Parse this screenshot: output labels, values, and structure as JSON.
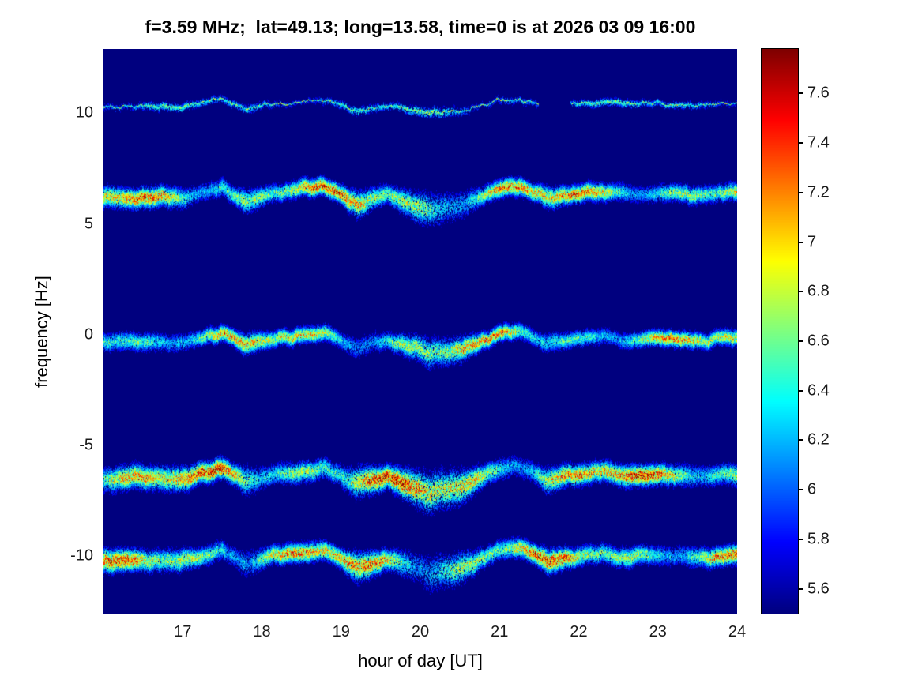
{
  "chart_data": {
    "type": "heatmap",
    "subtype": "doppler-spectrogram",
    "title": "f=3.59 MHz;  lat=49.13; long=13.58, time=0 is at 2026 03 09 16:00",
    "xlabel": "hour of day [UT]",
    "ylabel": "frequency [Hz]",
    "xlim": [
      16,
      24
    ],
    "ylim": [
      -12.6,
      12.9
    ],
    "xticks": [
      17,
      18,
      19,
      20,
      21,
      22,
      23,
      24
    ],
    "yticks": [
      10,
      5,
      0,
      -5,
      -10
    ],
    "colormap": "jet",
    "background_color": "#00007f",
    "colorbar": {
      "min": 5.5,
      "max": 7.78,
      "ticks": [
        {
          "v": 5.6,
          "label": "5.6"
        },
        {
          "v": 5.8,
          "label": "5.8"
        },
        {
          "v": 6.0,
          "label": "6"
        },
        {
          "v": 6.2,
          "label": "6.2"
        },
        {
          "v": 6.4,
          "label": "6.4"
        },
        {
          "v": 6.6,
          "label": "6.6"
        },
        {
          "v": 6.8,
          "label": "6.8"
        },
        {
          "v": 7.0,
          "label": "7"
        },
        {
          "v": 7.2,
          "label": "7.2"
        },
        {
          "v": 7.4,
          "label": "7.4"
        },
        {
          "v": 7.6,
          "label": "7.6"
        }
      ]
    },
    "bands": [
      {
        "center_hz": 10.4,
        "width_hz": 0.1,
        "strength": 0.5,
        "style": "thin",
        "wiggle_scale": 0.55,
        "gaps": [
          [
            21.5,
            21.9
          ]
        ]
      },
      {
        "center_hz": 6.35,
        "width_hz": 0.22,
        "strength": 0.95,
        "style": "speckle",
        "wiggle_scale": 1.0,
        "gaps": []
      },
      {
        "center_hz": -0.2,
        "width_hz": 0.2,
        "strength": 0.85,
        "style": "speckle",
        "wiggle_scale": 0.9,
        "gaps": []
      },
      {
        "center_hz": -6.35,
        "width_hz": 0.26,
        "strength": 1.0,
        "style": "speckle",
        "wiggle_scale": 1.0,
        "gaps": []
      },
      {
        "center_hz": -10.05,
        "width_hz": 0.24,
        "strength": 0.95,
        "style": "speckle",
        "wiggle_scale": 1.0,
        "gaps": []
      }
    ],
    "doppler_trend": [
      [
        16.0,
        -0.15
      ],
      [
        16.5,
        -0.1
      ],
      [
        17.0,
        -0.15
      ],
      [
        17.5,
        0.35
      ],
      [
        17.8,
        -0.3
      ],
      [
        18.2,
        0.1
      ],
      [
        18.8,
        0.35
      ],
      [
        19.2,
        -0.4
      ],
      [
        19.6,
        -0.05
      ],
      [
        20.1,
        -0.7
      ],
      [
        20.5,
        -0.5
      ],
      [
        21.0,
        0.3
      ],
      [
        21.25,
        0.45
      ],
      [
        21.6,
        -0.2
      ],
      [
        22.0,
        0.05
      ],
      [
        22.3,
        0.2
      ],
      [
        22.6,
        -0.05
      ],
      [
        23.0,
        0.1
      ],
      [
        23.4,
        -0.05
      ],
      [
        23.7,
        0.05
      ],
      [
        24.0,
        0.1
      ]
    ]
  }
}
